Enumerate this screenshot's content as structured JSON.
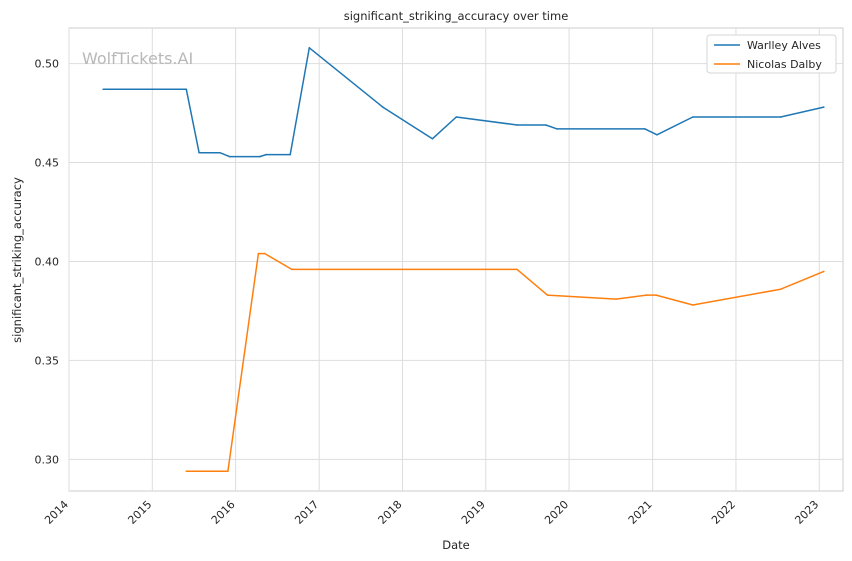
{
  "watermark": "WolfTickets.AI",
  "chart_data": {
    "type": "line",
    "title": "significant_striking_accuracy over time",
    "xlabel": "Date",
    "ylabel": "significant_striking_accuracy",
    "xlim": [
      "2014-01-01",
      "2023-04-15"
    ],
    "ylim": [
      0.284,
      0.518
    ],
    "x_ticks": [
      "2014",
      "2015",
      "2016",
      "2017",
      "2018",
      "2019",
      "2020",
      "2021",
      "2022",
      "2023"
    ],
    "y_ticks": [
      "0.30",
      "0.35",
      "0.40",
      "0.45",
      "0.50"
    ],
    "grid": true,
    "legend_position": "top-right",
    "colors": {
      "Warlley Alves": "#1f77b4",
      "Nicolas Dalby": "#ff7f0e"
    },
    "series": [
      {
        "name": "Warlley Alves",
        "points": [
          [
            "2014-05-31",
            0.487
          ],
          [
            "2015-05-30",
            0.487
          ],
          [
            "2015-07-25",
            0.455
          ],
          [
            "2015-10-24",
            0.455
          ],
          [
            "2015-12-05",
            0.453
          ],
          [
            "2016-04-16",
            0.453
          ],
          [
            "2016-05-14",
            0.454
          ],
          [
            "2016-08-27",
            0.454
          ],
          [
            "2016-11-19",
            0.508
          ],
          [
            "2017-10-07",
            0.478
          ],
          [
            "2018-05-12",
            0.462
          ],
          [
            "2018-08-25",
            0.473
          ],
          [
            "2019-05-18",
            0.469
          ],
          [
            "2019-09-21",
            0.469
          ],
          [
            "2019-11-09",
            0.467
          ],
          [
            "2020-11-28",
            0.467
          ],
          [
            "2021-01-20",
            0.464
          ],
          [
            "2021-06-26",
            0.473
          ],
          [
            "2022-07-16",
            0.473
          ],
          [
            "2023-01-21",
            0.478
          ]
        ]
      },
      {
        "name": "Nicolas Dalby",
        "points": [
          [
            "2015-05-30",
            0.294
          ],
          [
            "2015-11-28",
            0.294
          ],
          [
            "2016-04-10",
            0.404
          ],
          [
            "2016-05-08",
            0.404
          ],
          [
            "2016-09-03",
            0.396
          ],
          [
            "2019-05-18",
            0.396
          ],
          [
            "2019-09-28",
            0.383
          ],
          [
            "2020-07-25",
            0.381
          ],
          [
            "2020-12-05",
            0.383
          ],
          [
            "2021-01-16",
            0.383
          ],
          [
            "2021-06-26",
            0.378
          ],
          [
            "2022-07-16",
            0.386
          ],
          [
            "2023-01-21",
            0.395
          ]
        ]
      }
    ]
  }
}
